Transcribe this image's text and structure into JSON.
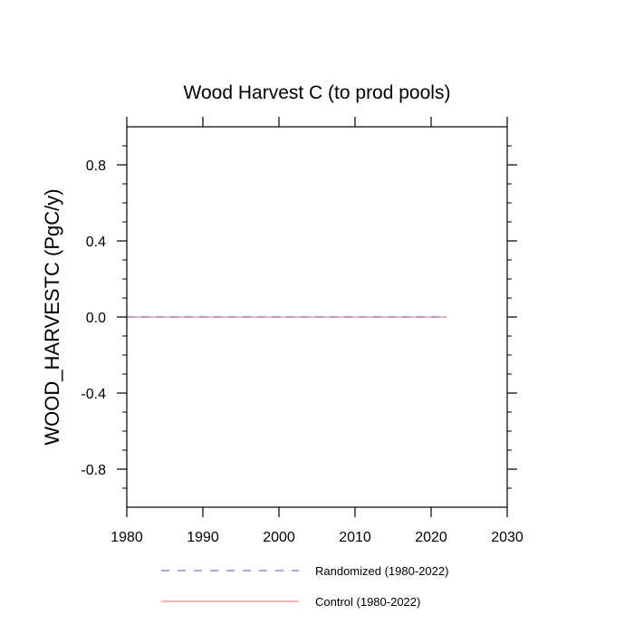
{
  "chart_data": {
    "type": "line",
    "title": "Wood Harvest C (to prod pools)",
    "xlabel": "",
    "ylabel": "WOOD_HARVESTC  (PgC/y)",
    "xlim": [
      1980,
      2030
    ],
    "ylim": [
      -1.0,
      1.0
    ],
    "x_ticks": [
      1980,
      1990,
      2000,
      2010,
      2020,
      2030
    ],
    "x_tick_labels": [
      "1980",
      "1990",
      "2000",
      "2010",
      "2020",
      "2030"
    ],
    "y_ticks": [
      -0.8,
      -0.4,
      0.0,
      0.4,
      0.8
    ],
    "y_tick_labels": [
      "-0.8",
      "-0.4",
      "0.0",
      "0.4",
      "0.8"
    ],
    "grid": false,
    "legend_position": "bottom",
    "series": [
      {
        "name": "Randomized (1980-2022)",
        "color": "#7b6fd6",
        "dash": "dashed",
        "x": [
          1980,
          2022
        ],
        "values": [
          0.0,
          0.0
        ]
      },
      {
        "name": "Control (1980-2022)",
        "color": "#f28b8b",
        "dash": "solid",
        "x": [
          1980,
          2022
        ],
        "values": [
          0.0,
          0.0
        ]
      }
    ]
  }
}
